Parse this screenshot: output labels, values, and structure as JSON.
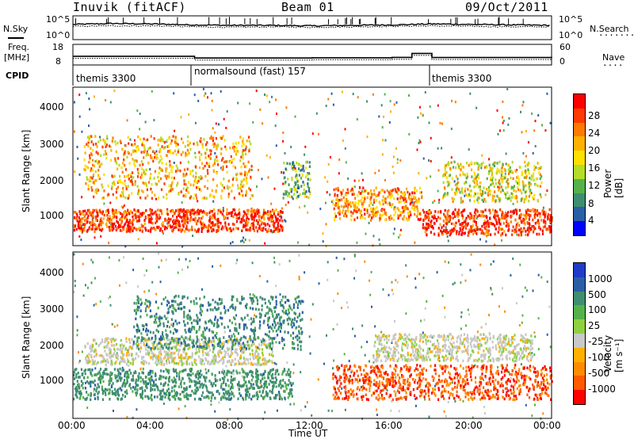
{
  "header": {
    "station": "Inuvik (fitACF)",
    "beam": "Beam 01",
    "date": "09/Oct/2011"
  },
  "side_labels": {
    "nsky": "N.Sky",
    "freq": "Freq.",
    "freq_unit": "[MHz]",
    "cpid": "CPID",
    "nsearch": "N.Search",
    "nave": "Nave"
  },
  "noise_axis": {
    "left_top": "10^5",
    "left_bottom": "10^0",
    "right_top": "10^5",
    "right_bottom": "10^0"
  },
  "freq_axis": {
    "left_top": "18",
    "left_bottom": "8",
    "right_top": "60",
    "right_bottom": "0"
  },
  "cpid_segments": [
    {
      "label": "themis 3300",
      "start_hour": 0,
      "end_hour": 6
    },
    {
      "label": "normalsound (fast) 157",
      "start_hour": 6,
      "end_hour": 18
    },
    {
      "label": "themis 3300",
      "start_hour": 18,
      "end_hour": 24
    }
  ],
  "panels": {
    "range_ticks": [
      "4000",
      "3000",
      "2000",
      "1000"
    ],
    "range_label": "Slant Range [km]",
    "x_ticks": [
      "00:00",
      "04:00",
      "08:00",
      "12:00",
      "16:00",
      "20:00",
      "00:00"
    ],
    "x_label": "Time UT"
  },
  "power_scale": {
    "label": "Power [dB]",
    "ticks": [
      "28",
      "24",
      "20",
      "16",
      "12",
      "8",
      "4"
    ],
    "colors": [
      "#ff0000",
      "#ff3a00",
      "#ff7a00",
      "#ffb000",
      "#ffe000",
      "#b4dc28",
      "#55b24a",
      "#3f8e6f",
      "#2a5fa6",
      "#0000ff"
    ]
  },
  "velocity_scale": {
    "label": "Velocity [m s⁻¹]",
    "ticks": [
      "1000",
      "500",
      "100",
      "25",
      "-25",
      "-100",
      "-500",
      "-1000"
    ],
    "colors": [
      "#1e3cc8",
      "#2a5fa6",
      "#3f8e6f",
      "#55b24a",
      "#8fd040",
      "#c8c8c8",
      "#ffb000",
      "#ff8c00",
      "#ff5a00",
      "#ff0000"
    ]
  },
  "chart_data": [
    {
      "type": "line",
      "title": "",
      "x": [
        0,
        2,
        4,
        6,
        8,
        10,
        12,
        14,
        16,
        18,
        20,
        22,
        24
      ],
      "series": [
        {
          "name": "N.Sky",
          "values": [
            3.2,
            3.4,
            3.3,
            3.1,
            3.0,
            3.0,
            2.9,
            3.0,
            3.1,
            3.3,
            3.2,
            3.1,
            3.0
          ]
        },
        {
          "name": "N.Search",
          "values": [
            2.8,
            2.9,
            2.9,
            2.7,
            2.6,
            2.7,
            2.6,
            2.7,
            2.8,
            2.9,
            2.8,
            2.7,
            2.7
          ]
        }
      ],
      "xlim": [
        0,
        24
      ],
      "ylim": [
        0,
        5
      ]
    },
    {
      "type": "line",
      "title": "",
      "x": [
        0,
        6,
        6.1,
        10,
        12,
        16,
        17,
        17.6,
        18,
        24
      ],
      "series": [
        {
          "name": "Freq.",
          "values": [
            12.2,
            12.2,
            11.4,
            11.4,
            11.5,
            11.7,
            13.6,
            13.6,
            11.6,
            12.0
          ]
        }
      ],
      "xlim": [
        0,
        24
      ],
      "ylim": [
        8,
        18
      ]
    },
    {
      "type": "heatmap",
      "title": "",
      "xlabel": "Time UT",
      "ylabel": "Slant Range [km]",
      "xlim": [
        0,
        24
      ],
      "ylim": [
        180,
        4500
      ],
      "colorbar": "Power [dB]",
      "features": [
        {
          "t_start": 0,
          "t_end": 10.5,
          "range_min": 600,
          "range_max": 1200,
          "level": 26
        },
        {
          "t_start": 0.5,
          "t_end": 9,
          "range_min": 1500,
          "range_max": 3200,
          "level": 20
        },
        {
          "t_start": 10.5,
          "t_end": 11.9,
          "range_min": 1500,
          "range_max": 2500,
          "level": 10
        },
        {
          "t_start": 13,
          "t_end": 17.5,
          "range_min": 900,
          "range_max": 1800,
          "level": 22
        },
        {
          "t_start": 17.5,
          "t_end": 24,
          "range_min": 500,
          "range_max": 1200,
          "level": 27
        },
        {
          "t_start": 18.5,
          "t_end": 23.5,
          "range_min": 1400,
          "range_max": 2500,
          "level": 16
        }
      ]
    },
    {
      "type": "heatmap",
      "title": "",
      "xlabel": "Time UT",
      "ylabel": "Slant Range [km]",
      "xlim": [
        0,
        24
      ],
      "ylim": [
        180,
        4500
      ],
      "colorbar": "Velocity [m s⁻¹]",
      "features": [
        {
          "t_start": 0,
          "t_end": 11,
          "range_min": 700,
          "range_max": 1500,
          "level": 200
        },
        {
          "t_start": 0.5,
          "t_end": 10,
          "range_min": 1600,
          "range_max": 2300,
          "level": 0
        },
        {
          "t_start": 3,
          "t_end": 11.5,
          "range_min": 2000,
          "range_max": 3400,
          "level": 300
        },
        {
          "t_start": 13,
          "t_end": 24,
          "range_min": 700,
          "range_max": 1600,
          "level": -300
        },
        {
          "t_start": 15,
          "t_end": 23,
          "range_min": 1700,
          "range_max": 2400,
          "level": 0
        }
      ]
    }
  ]
}
